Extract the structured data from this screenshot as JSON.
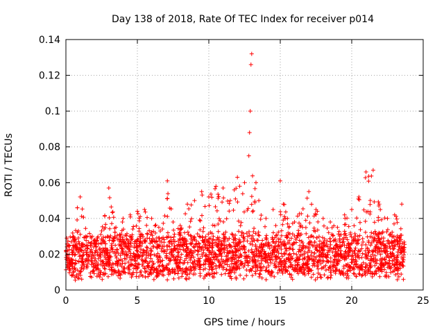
{
  "chart_data": {
    "type": "scatter",
    "title": "Day 138 of 2018, Rate Of TEC Index for receiver p014",
    "xlabel": "GPS time / hours",
    "ylabel": "ROTI / TECUs",
    "xlim": [
      0,
      25
    ],
    "ylim": [
      0,
      0.14
    ],
    "xticks": [
      0,
      5,
      10,
      15,
      20,
      25
    ],
    "xtick_labels": [
      "0",
      "5",
      "10",
      "15",
      "20",
      "25"
    ],
    "yticks": [
      0,
      0.02,
      0.04,
      0.06,
      0.08,
      0.1,
      0.12,
      0.14
    ],
    "ytick_labels": [
      "0",
      "0.02",
      "0.04",
      "0.06",
      "0.08",
      "0.1",
      "0.12",
      "0.14"
    ],
    "grid": true,
    "marker": "+",
    "color": "#ff0000",
    "series": [
      {
        "name": "ROTI",
        "x_range": [
          0,
          23.7
        ],
        "typical_range": [
          0.005,
          0.045
        ],
        "points": [
          [
            0.2,
            0.018
          ],
          [
            0.5,
            0.025
          ],
          [
            0.8,
            0.046
          ],
          [
            1.0,
            0.052
          ],
          [
            1.5,
            0.03
          ],
          [
            2.0,
            0.028
          ],
          [
            2.5,
            0.033
          ],
          [
            3.0,
            0.057
          ],
          [
            3.5,
            0.035
          ],
          [
            4.0,
            0.04
          ],
          [
            4.5,
            0.042
          ],
          [
            5.0,
            0.044
          ],
          [
            5.5,
            0.045
          ],
          [
            6.0,
            0.04
          ],
          [
            6.5,
            0.035
          ],
          [
            7.1,
            0.061
          ],
          [
            7.5,
            0.038
          ],
          [
            8.0,
            0.036
          ],
          [
            8.5,
            0.048
          ],
          [
            9.0,
            0.05
          ],
          [
            9.5,
            0.055
          ],
          [
            10.0,
            0.052
          ],
          [
            10.5,
            0.058
          ],
          [
            11.0,
            0.057
          ],
          [
            11.5,
            0.05
          ],
          [
            12.0,
            0.063
          ],
          [
            12.5,
            0.06
          ],
          [
            12.8,
            0.075
          ],
          [
            12.85,
            0.088
          ],
          [
            12.9,
            0.1
          ],
          [
            12.95,
            0.126
          ],
          [
            13.0,
            0.132
          ],
          [
            13.3,
            0.06
          ],
          [
            13.5,
            0.05
          ],
          [
            14.0,
            0.04
          ],
          [
            14.5,
            0.045
          ],
          [
            15.0,
            0.061
          ],
          [
            15.5,
            0.04
          ],
          [
            16.0,
            0.038
          ],
          [
            17.0,
            0.055
          ],
          [
            17.5,
            0.045
          ],
          [
            18.0,
            0.04
          ],
          [
            18.5,
            0.038
          ],
          [
            19.0,
            0.035
          ],
          [
            19.5,
            0.042
          ],
          [
            20.0,
            0.045
          ],
          [
            20.5,
            0.052
          ],
          [
            21.0,
            0.066
          ],
          [
            21.5,
            0.067
          ],
          [
            22.0,
            0.045
          ],
          [
            22.5,
            0.04
          ],
          [
            23.0,
            0.042
          ],
          [
            23.5,
            0.048
          ]
        ]
      }
    ]
  }
}
